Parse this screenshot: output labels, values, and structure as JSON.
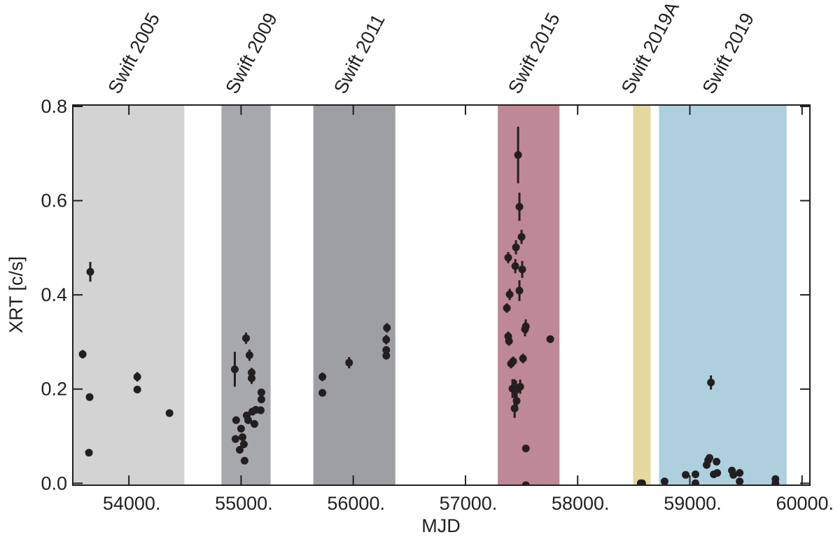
{
  "chart_data": {
    "type": "scatter",
    "xlabel": "MJD",
    "ylabel": "XRT [c/s]",
    "color": "#231f20",
    "xlim": [
      53500,
      60070
    ],
    "ylim": [
      -0.004,
      0.803
    ],
    "xticks": [
      {
        "value": 54000,
        "label": "54000."
      },
      {
        "value": 55000,
        "label": "55000."
      },
      {
        "value": 56000,
        "label": "56000."
      },
      {
        "value": 57000,
        "label": "57000."
      },
      {
        "value": 58000,
        "label": "58000."
      },
      {
        "value": 59000,
        "label": "59000."
      },
      {
        "value": 60000,
        "label": "60000."
      }
    ],
    "yticks": [
      {
        "value": 0,
        "label": "0.0"
      },
      0.2,
      0.4,
      0.6,
      0.8
    ],
    "regions": [
      {
        "label": "Swift 2005",
        "start": 53500,
        "end": 54494,
        "color": "#d3d3d3"
      },
      {
        "label": "Swift 2009",
        "start": 54825,
        "end": 55263,
        "color": "#a7a8ac"
      },
      {
        "label": "Swift 2011",
        "start": 55644,
        "end": 56375,
        "color": "#9e9fa3"
      },
      {
        "label": "Swift 2015",
        "start": 57288,
        "end": 57838,
        "color": "#bf8896"
      },
      {
        "label": "Swift 2019A",
        "start": 58494,
        "end": 58650,
        "color": "#e5d9a0"
      },
      {
        "label": "Swift 2019",
        "start": 58725,
        "end": 59863,
        "color": "#aed0de"
      }
    ],
    "x": [
      53588,
      53656,
      53650,
      53644,
      54075,
      54075,
      54362,
      54944,
      54956,
      54950,
      54988,
      55000,
      55013,
      55025,
      55031,
      55050,
      55044,
      55075,
      55094,
      55094,
      55063,
      55100,
      55119,
      55131,
      55181,
      55181,
      55175,
      55725,
      55725,
      55963,
      56300,
      56294,
      56294,
      56294,
      57469,
      57481,
      57500,
      57450,
      57381,
      57444,
      57506,
      57481,
      57394,
      57369,
      57381,
      57388,
      57538,
      57531,
      57513,
      57425,
      57406,
      57419,
      57438,
      57450,
      57488,
      57456,
      57438,
      57538,
      57756,
      57538,
      58562,
      58575,
      58775,
      58963,
      59050,
      59050,
      59150,
      59163,
      59175,
      59188,
      59213,
      59238,
      59244,
      59375,
      59388,
      59444,
      59444,
      59763,
      59763
    ],
    "values": [
      0.274,
      0.449,
      0.183,
      0.065,
      0.226,
      0.199,
      0.149,
      0.242,
      0.134,
      0.094,
      0.071,
      0.116,
      0.098,
      0.083,
      0.048,
      0.144,
      0.308,
      0.272,
      0.223,
      0.235,
      0.134,
      0.152,
      0.126,
      0.156,
      0.193,
      0.178,
      0.155,
      0.226,
      0.192,
      0.256,
      0.33,
      0.305,
      0.283,
      0.271,
      0.697,
      0.587,
      0.523,
      0.501,
      0.479,
      0.461,
      0.454,
      0.409,
      0.401,
      0.372,
      0.312,
      0.302,
      0.333,
      0.327,
      0.265,
      0.259,
      0.254,
      0.201,
      0.201,
      0.198,
      0.205,
      0.175,
      0.159,
      0.074,
      0.306,
      -0.004,
      0.0,
      0.0,
      0.004,
      0.018,
      0.019,
      0.0,
      0.039,
      0.049,
      0.054,
      0.214,
      0.019,
      0.046,
      0.022,
      0.027,
      0.018,
      0.022,
      0.004,
      0.009,
      0.0
    ],
    "errors": [
      0.009,
      0.021,
      0.006,
      0.006,
      0.01,
      0.008,
      0.006,
      0.037,
      0.008,
      0.008,
      0.007,
      0.008,
      0.008,
      0.008,
      0.007,
      0.008,
      0.012,
      0.012,
      0.012,
      0.01,
      0.008,
      0.008,
      0.008,
      0.008,
      0.008,
      0.008,
      0.008,
      0.009,
      0.008,
      0.012,
      0.01,
      0.01,
      0.008,
      0.008,
      0.06,
      0.03,
      0.015,
      0.015,
      0.012,
      0.015,
      0.018,
      0.022,
      0.012,
      0.01,
      0.01,
      0.01,
      0.015,
      0.015,
      0.01,
      0.01,
      0.01,
      0.02,
      0.02,
      0.02,
      0.015,
      0.015,
      0.02,
      0.006,
      0.008,
      0.004,
      0.004,
      0.004,
      0.005,
      0.005,
      0.005,
      0.004,
      0.006,
      0.006,
      0.006,
      0.015,
      0.005,
      0.006,
      0.005,
      0.005,
      0.005,
      0.005,
      0.004,
      0.005,
      0.004
    ]
  }
}
